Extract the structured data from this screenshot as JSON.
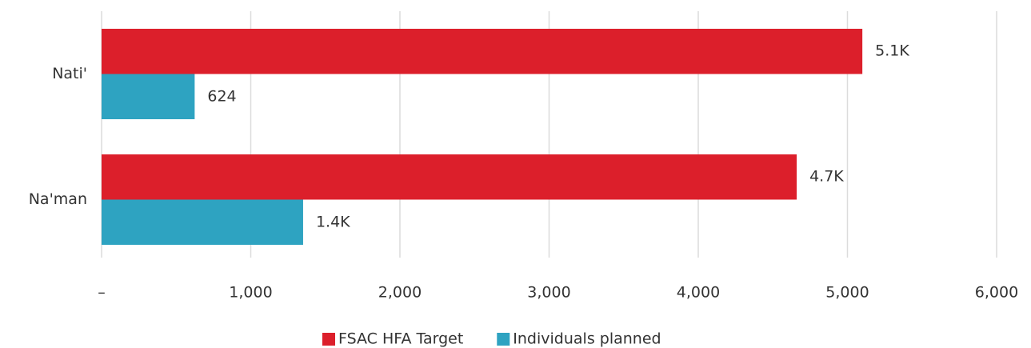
{
  "chart_data": {
    "type": "hbar",
    "categories": [
      "Nati'",
      "Na'man"
    ],
    "series": [
      {
        "name": "FSAC HFA Target",
        "color": "#dc1f2b",
        "values": [
          5100,
          4660
        ],
        "value_labels": [
          "5.1K",
          "4.7K"
        ]
      },
      {
        "name": "Individuals planned",
        "color": "#2ea3c1",
        "values": [
          624,
          1351
        ],
        "value_labels": [
          "624",
          "1.4K"
        ]
      }
    ],
    "xlim": [
      0,
      6000
    ],
    "xticks": [
      {
        "value": 0,
        "label": "–"
      },
      {
        "value": 1000,
        "label": "1,000"
      },
      {
        "value": 2000,
        "label": "2,000"
      },
      {
        "value": 3000,
        "label": "3,000"
      },
      {
        "value": 4000,
        "label": "4,000"
      },
      {
        "value": 5000,
        "label": "5,000"
      },
      {
        "value": 6000,
        "label": "6,000"
      }
    ],
    "grid": true,
    "legend": "bottom"
  }
}
